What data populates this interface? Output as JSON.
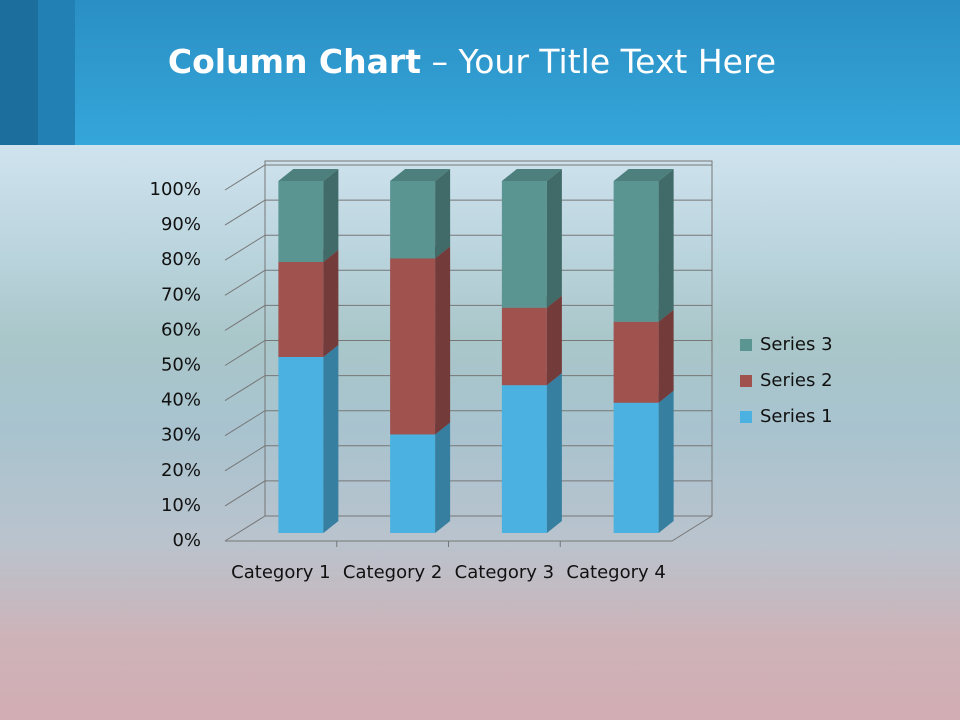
{
  "chart_data": {
    "type": "bar3d_stacked_percent",
    "title_bold": "Column Chart",
    "title_rest": "– Your Title Text Here",
    "categories": [
      "Category 1",
      "Category 2",
      "Category 3",
      "Category 4"
    ],
    "series": [
      {
        "name": "Series 1",
        "color": "#4bb1e0",
        "values": [
          50,
          28,
          42,
          37
        ]
      },
      {
        "name": "Series 2",
        "color": "#a0524f",
        "values": [
          27,
          50,
          22,
          23
        ]
      },
      {
        "name": "Series 3",
        "color": "#5a9592",
        "values": [
          23,
          22,
          36,
          40
        ]
      }
    ],
    "ylim": [
      0,
      100
    ],
    "yticks": [
      {
        "value": 0,
        "label": "0%"
      },
      {
        "value": 10,
        "label": "10%"
      },
      {
        "value": 20,
        "label": "20%"
      },
      {
        "value": 30,
        "label": "30%"
      },
      {
        "value": 40,
        "label": "40%"
      },
      {
        "value": 50,
        "label": "50%"
      },
      {
        "value": 60,
        "label": "60%"
      },
      {
        "value": 70,
        "label": "70%"
      },
      {
        "value": 80,
        "label": "80%"
      },
      {
        "value": 90,
        "label": "90%"
      },
      {
        "value": 100,
        "label": "100%"
      }
    ],
    "grid": true,
    "legend": "right"
  }
}
